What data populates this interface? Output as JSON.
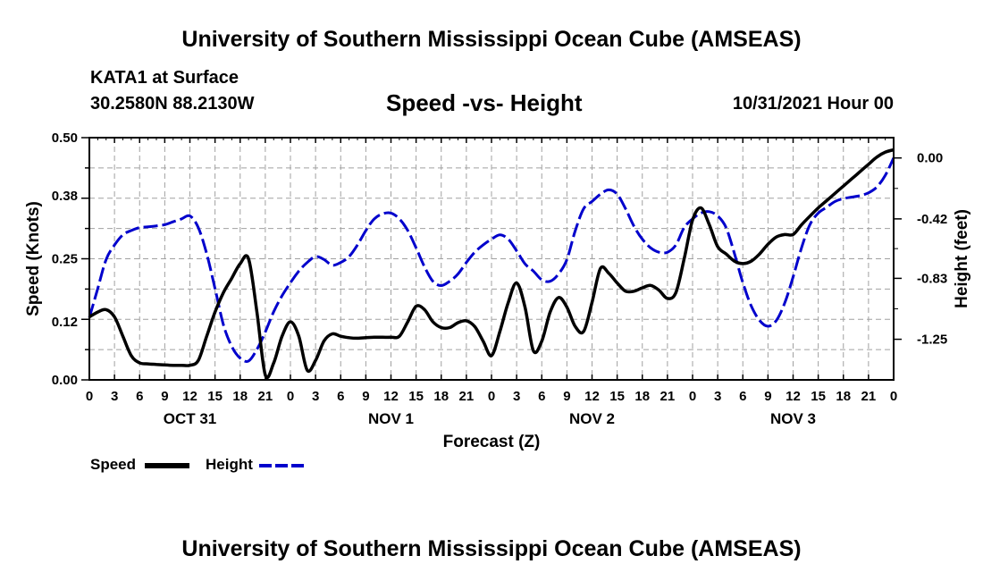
{
  "header": {
    "title": "University of Southern Mississippi Ocean Cube (AMSEAS)",
    "station": "KATA1 at Surface",
    "coords": "30.2580N  88.2130W",
    "subtitle": "Speed -vs- Height",
    "datetime": "10/31/2021 Hour 00"
  },
  "footer": {
    "title": "University of Southern Mississippi Ocean Cube (AMSEAS)"
  },
  "legend": {
    "speed": "Speed",
    "height": "Height"
  },
  "colors": {
    "speed": "#000000",
    "height": "#0000cc",
    "grid": "#a0a0a0"
  },
  "chart_data": {
    "type": "line",
    "title": "Speed -vs- Height",
    "xlabel": "Forecast (Z)",
    "ylabel": "Speed (Knots)",
    "y2label": "Height (feet)",
    "xlim": [
      0,
      96
    ],
    "ylim": [
      0,
      0.5
    ],
    "y2lim": [
      -1.53,
      0.14
    ],
    "x_tick_labels": [
      "0",
      "3",
      "6",
      "9",
      "12",
      "15",
      "18",
      "21",
      "0",
      "3",
      "6",
      "9",
      "12",
      "15",
      "18",
      "21",
      "0",
      "3",
      "6",
      "9",
      "12",
      "15",
      "18",
      "21",
      "0",
      "3",
      "6",
      "9",
      "12",
      "15",
      "18",
      "21",
      "0"
    ],
    "y_ticks": [
      0.0,
      0.12,
      0.25,
      0.38,
      0.5
    ],
    "y_tick_labels": [
      "0.00",
      "0.12",
      "0.25",
      "0.38",
      "0.50"
    ],
    "y2_ticks": [
      0.0,
      -0.42,
      -0.83,
      -1.25
    ],
    "y2_tick_labels": [
      "0.00",
      "-0.42",
      "-0.83",
      "-1.25"
    ],
    "date_labels": [
      {
        "label": "OCT 31",
        "x": 12
      },
      {
        "label": "NOV 1",
        "x": 36
      },
      {
        "label": "NOV 2",
        "x": 60
      },
      {
        "label": "NOV 3",
        "x": 84
      }
    ],
    "series": [
      {
        "name": "Speed",
        "axis": "left",
        "x": [
          0,
          1,
          2,
          3,
          4,
          5,
          6,
          7,
          8,
          9,
          10,
          11,
          12,
          13,
          14,
          15,
          16,
          17,
          18,
          19,
          20,
          21,
          22,
          23,
          24,
          25,
          26,
          27,
          28,
          29,
          30,
          31,
          32,
          33,
          34,
          35,
          36,
          37,
          38,
          39,
          40,
          41,
          42,
          43,
          44,
          45,
          46,
          47,
          48,
          49,
          50,
          51,
          52,
          53,
          54,
          55,
          56,
          57,
          58,
          59,
          60,
          61,
          62,
          63,
          64,
          65,
          66,
          67,
          68,
          69,
          70,
          71,
          72,
          73,
          74,
          75,
          76,
          77,
          78,
          79,
          80,
          81,
          82,
          83,
          84,
          85,
          86,
          87,
          88,
          89,
          90,
          91,
          92,
          93,
          94,
          95,
          96
        ],
        "values": [
          0.13,
          0.14,
          0.145,
          0.13,
          0.09,
          0.05,
          0.035,
          0.033,
          0.032,
          0.031,
          0.03,
          0.03,
          0.03,
          0.04,
          0.09,
          0.14,
          0.18,
          0.21,
          0.24,
          0.25,
          0.14,
          0.01,
          0.035,
          0.09,
          0.12,
          0.09,
          0.02,
          0.04,
          0.08,
          0.095,
          0.09,
          0.087,
          0.086,
          0.087,
          0.088,
          0.088,
          0.088,
          0.09,
          0.12,
          0.152,
          0.145,
          0.12,
          0.108,
          0.108,
          0.118,
          0.122,
          0.11,
          0.08,
          0.05,
          0.1,
          0.16,
          0.2,
          0.15,
          0.06,
          0.08,
          0.14,
          0.17,
          0.15,
          0.11,
          0.1,
          0.16,
          0.23,
          0.22,
          0.2,
          0.183,
          0.183,
          0.19,
          0.195,
          0.185,
          0.168,
          0.18,
          0.25,
          0.33,
          0.355,
          0.32,
          0.275,
          0.26,
          0.245,
          0.24,
          0.245,
          0.26,
          0.28,
          0.295,
          0.3,
          0.3,
          0.32,
          0.338,
          0.355,
          0.37,
          0.385,
          0.4,
          0.415,
          0.43,
          0.445,
          0.46,
          0.47,
          0.475
        ]
      },
      {
        "name": "Height",
        "axis": "right",
        "x": [
          0,
          1,
          2,
          3,
          4,
          5,
          6,
          7,
          8,
          9,
          10,
          11,
          12,
          13,
          14,
          15,
          16,
          17,
          18,
          19,
          20,
          21,
          22,
          23,
          24,
          25,
          26,
          27,
          28,
          29,
          30,
          31,
          32,
          33,
          34,
          35,
          36,
          37,
          38,
          39,
          40,
          41,
          42,
          43,
          44,
          45,
          46,
          47,
          48,
          49,
          50,
          51,
          52,
          53,
          54,
          55,
          56,
          57,
          58,
          59,
          60,
          61,
          62,
          63,
          64,
          65,
          66,
          67,
          68,
          69,
          70,
          71,
          72,
          73,
          74,
          75,
          76,
          77,
          78,
          79,
          80,
          81,
          82,
          83,
          84,
          85,
          86,
          87,
          88,
          89,
          90,
          91,
          92,
          93,
          94,
          95,
          96
        ],
        "values": [
          -1.1,
          -0.9,
          -0.7,
          -0.6,
          -0.53,
          -0.5,
          -0.48,
          -0.475,
          -0.468,
          -0.46,
          -0.44,
          -0.42,
          -0.4,
          -0.48,
          -0.66,
          -0.9,
          -1.15,
          -1.3,
          -1.38,
          -1.4,
          -1.32,
          -1.2,
          -1.06,
          -0.95,
          -0.86,
          -0.78,
          -0.72,
          -0.68,
          -0.7,
          -0.74,
          -0.72,
          -0.68,
          -0.6,
          -0.5,
          -0.42,
          -0.385,
          -0.38,
          -0.42,
          -0.5,
          -0.62,
          -0.75,
          -0.85,
          -0.88,
          -0.85,
          -0.8,
          -0.72,
          -0.65,
          -0.6,
          -0.56,
          -0.53,
          -0.56,
          -0.64,
          -0.73,
          -0.78,
          -0.84,
          -0.85,
          -0.8,
          -0.7,
          -0.5,
          -0.35,
          -0.3,
          -0.25,
          -0.22,
          -0.25,
          -0.35,
          -0.47,
          -0.56,
          -0.62,
          -0.65,
          -0.65,
          -0.6,
          -0.48,
          -0.42,
          -0.38,
          -0.37,
          -0.4,
          -0.48,
          -0.66,
          -0.86,
          -1.02,
          -1.12,
          -1.16,
          -1.12,
          -1.0,
          -0.82,
          -0.62,
          -0.46,
          -0.38,
          -0.34,
          -0.3,
          -0.28,
          -0.27,
          -0.26,
          -0.24,
          -0.2,
          -0.12,
          0.0
        ]
      }
    ]
  }
}
